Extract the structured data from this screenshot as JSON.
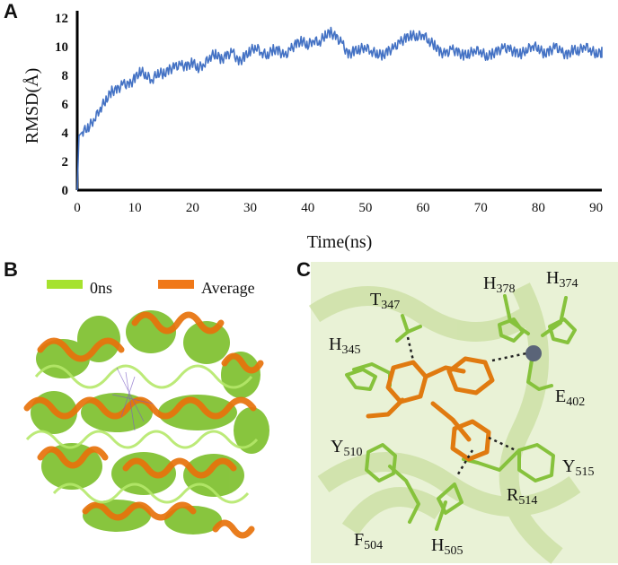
{
  "panels": {
    "a": "A",
    "b": "B",
    "c": "C"
  },
  "chart_data": {
    "type": "line",
    "title": "",
    "xlabel": "Time(ns)",
    "ylabel": "RMSD(Å)",
    "xlim": [
      0,
      91
    ],
    "ylim": [
      0,
      12
    ],
    "xticks": [
      "0",
      "10",
      "20",
      "30",
      "40",
      "50",
      "60",
      "70",
      "80",
      "90"
    ],
    "yticks": [
      "0",
      "2",
      "4",
      "6",
      "8",
      "10",
      "12"
    ],
    "series": [
      {
        "name": "RMSD",
        "color": "#4472c4",
        "x": [
          0,
          0.3,
          1,
          2,
          3,
          4,
          5,
          6,
          7,
          8,
          9,
          10,
          11,
          12,
          13,
          14,
          15,
          16,
          17,
          18,
          19,
          20,
          21,
          22,
          23,
          24,
          25,
          26,
          27,
          28,
          29,
          30,
          31,
          32,
          33,
          34,
          35,
          36,
          37,
          38,
          39,
          40,
          41,
          42,
          43,
          44,
          45,
          46,
          47,
          48,
          49,
          50,
          51,
          52,
          53,
          54,
          55,
          56,
          57,
          58,
          59,
          60,
          61,
          62,
          63,
          64,
          65,
          66,
          67,
          68,
          69,
          70,
          71,
          72,
          73,
          74,
          75,
          76,
          77,
          78,
          79,
          80,
          81,
          82,
          83,
          84,
          85,
          86,
          87,
          88,
          89,
          90,
          91
        ],
        "values": [
          0,
          3.8,
          4.1,
          4.4,
          5.0,
          5.7,
          6.3,
          6.9,
          7.0,
          7.4,
          7.3,
          7.8,
          8.3,
          8.0,
          7.7,
          8.2,
          8.1,
          8.4,
          8.6,
          8.7,
          8.6,
          8.9,
          8.5,
          8.8,
          9.3,
          9.5,
          9.1,
          9.4,
          9.6,
          8.9,
          9.3,
          9.7,
          10.0,
          9.6,
          9.4,
          9.8,
          9.7,
          9.3,
          9.8,
          10.2,
          10.4,
          10.1,
          10.5,
          10.3,
          10.8,
          11.0,
          10.6,
          10.2,
          9.4,
          9.7,
          9.8,
          10.0,
          9.7,
          9.5,
          9.4,
          9.7,
          9.9,
          10.3,
          10.6,
          10.8,
          10.7,
          10.9,
          10.4,
          10.1,
          9.6,
          9.5,
          9.8,
          9.6,
          9.4,
          9.5,
          9.8,
          9.7,
          9.3,
          9.5,
          9.7,
          9.9,
          9.8,
          9.6,
          9.5,
          9.8,
          10.1,
          9.9,
          9.5,
          9.7,
          10.0,
          9.6,
          9.4,
          9.8,
          9.7,
          10.1,
          9.8,
          9.5,
          9.6
        ]
      }
    ]
  },
  "panel_b": {
    "legend": [
      {
        "label": "0ns",
        "color": "#a6e22e"
      },
      {
        "label": "Average",
        "color": "#f07818"
      }
    ]
  },
  "panel_c": {
    "residues": [
      {
        "name": "T",
        "num": "347"
      },
      {
        "name": "H",
        "num": "345"
      },
      {
        "name": "H",
        "num": "378"
      },
      {
        "name": "H",
        "num": "374"
      },
      {
        "name": "E",
        "num": "402"
      },
      {
        "name": "Y",
        "num": "510"
      },
      {
        "name": "Y",
        "num": "515"
      },
      {
        "name": "R",
        "num": "514"
      },
      {
        "name": "F",
        "num": "504"
      },
      {
        "name": "H",
        "num": "505"
      }
    ]
  }
}
